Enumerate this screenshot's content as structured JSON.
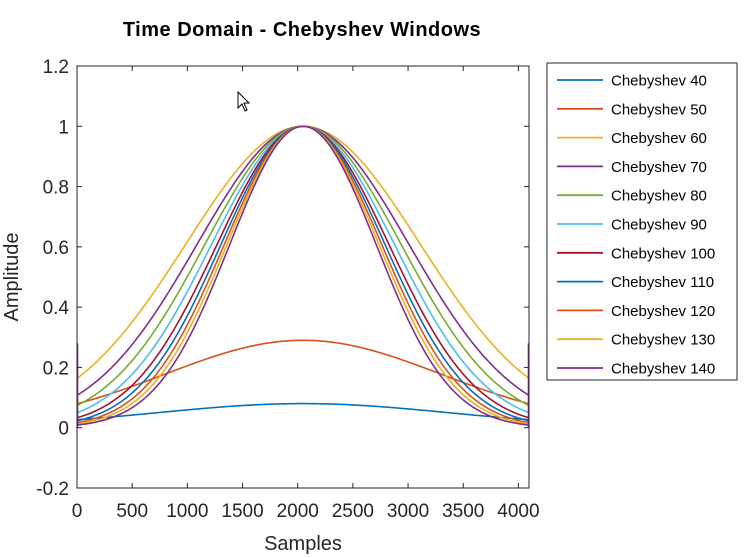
{
  "chart_data": {
    "type": "line",
    "title": "Time Domain - Chebyshev Windows",
    "xlabel": "Samples",
    "ylabel": "Amplitude",
    "xlim": [
      0,
      4096
    ],
    "ylim": [
      -0.2,
      1.2
    ],
    "xticks": [
      0,
      500,
      1000,
      1500,
      2000,
      2500,
      3000,
      3500,
      4000
    ],
    "yticks": [
      -0.2,
      0,
      0.2,
      0.4,
      0.6,
      0.8,
      1,
      1.2
    ],
    "ytick_labels": [
      "-0.2",
      "0",
      "0.2",
      "0.4",
      "0.6",
      "0.8",
      "1",
      "1.2"
    ],
    "grid": false,
    "legend_position": "outside-right",
    "series": [
      {
        "name": "Chebyshev 40",
        "color": "#0072bd",
        "peak": 0.08,
        "width": 1300,
        "shape": 2.0,
        "base": 0.005,
        "edge": 0.0
      },
      {
        "name": "Chebyshev 50",
        "color": "#d95319",
        "peak": 0.29,
        "width": 1250,
        "shape": 2.0,
        "base": 0.005,
        "edge": 0.0
      },
      {
        "name": "Chebyshev 60",
        "color": "#edb120",
        "peak": 1.0,
        "width": 1060,
        "shape": 2.0,
        "base": 0.01,
        "edge": 0.0
      },
      {
        "name": "Chebyshev 70",
        "color": "#7e2f8e",
        "peak": 1.0,
        "width": 960,
        "shape": 2.0,
        "base": 0.005,
        "edge": 0.0
      },
      {
        "name": "Chebyshev 80",
        "color": "#77ac30",
        "peak": 1.0,
        "width": 890,
        "shape": 2.0,
        "base": 0.003,
        "edge": 0.0
      },
      {
        "name": "Chebyshev 90",
        "color": "#4dbeee",
        "peak": 1.0,
        "width": 830,
        "shape": 2.0,
        "base": 0.002,
        "edge": 0.0
      },
      {
        "name": "Chebyshev 100",
        "color": "#a2142f",
        "peak": 1.0,
        "width": 780,
        "shape": 2.0,
        "base": 0.001,
        "edge": 0.0
      },
      {
        "name": "Chebyshev 110",
        "color": "#0072bd",
        "peak": 1.0,
        "width": 745,
        "shape": 2.0,
        "base": 0.0,
        "edge": 0.0
      },
      {
        "name": "Chebyshev 120",
        "color": "#d95319",
        "peak": 1.0,
        "width": 715,
        "shape": 2.0,
        "base": 0.0,
        "edge": 0.0
      },
      {
        "name": "Chebyshev 130",
        "color": "#edb120",
        "peak": 1.0,
        "width": 690,
        "shape": 2.0,
        "base": 0.0,
        "edge": 0.0
      },
      {
        "name": "Chebyshev 140",
        "color": "#7e2f8e",
        "peak": 1.0,
        "width": 665,
        "shape": 2.0,
        "base": 0.0,
        "edge": 0.28
      }
    ]
  }
}
